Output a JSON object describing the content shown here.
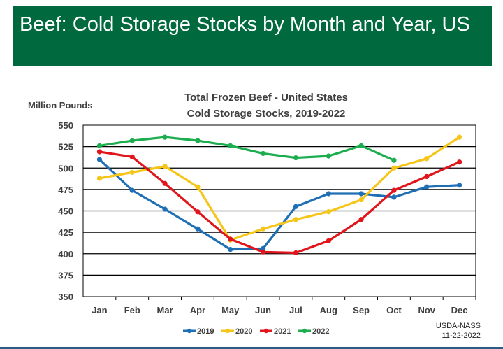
{
  "banner": {
    "title": "Beef: Cold Storage Stocks by Month and Year, US"
  },
  "source": {
    "line1": "USDA-NASS",
    "line2": "11-22-2022"
  },
  "chart_data": {
    "type": "line",
    "title_line1": "Total Frozen Beef - United States",
    "title_line2": "Cold Storage Stocks, 2019-2022",
    "ylabel": "Million Pounds",
    "xlabel": "",
    "ylim": [
      350,
      550
    ],
    "yticks": [
      350,
      375,
      400,
      425,
      450,
      475,
      500,
      525,
      550
    ],
    "grid": true,
    "legend_position": "bottom",
    "categories": [
      "Jan",
      "Feb",
      "Mar",
      "Apr",
      "May",
      "Jun",
      "Jul",
      "Aug",
      "Sep",
      "Oct",
      "Nov",
      "Dec"
    ],
    "series": [
      {
        "name": "2019",
        "color": "#1f6fb4",
        "values": [
          510,
          474,
          452,
          429,
          405,
          406,
          455,
          470,
          470,
          466,
          478,
          480
        ]
      },
      {
        "name": "2020",
        "color": "#f5c518",
        "values": [
          488,
          495,
          502,
          478,
          416,
          429,
          440,
          449,
          463,
          500,
          511,
          536
        ]
      },
      {
        "name": "2021",
        "color": "#e0161c",
        "values": [
          519,
          513,
          482,
          449,
          417,
          402,
          401,
          415,
          440,
          474,
          490,
          507
        ]
      },
      {
        "name": "2022",
        "color": "#1bad4e",
        "values": [
          526,
          532,
          536,
          532,
          526,
          517,
          512,
          514,
          526,
          509,
          null,
          null
        ]
      }
    ]
  }
}
